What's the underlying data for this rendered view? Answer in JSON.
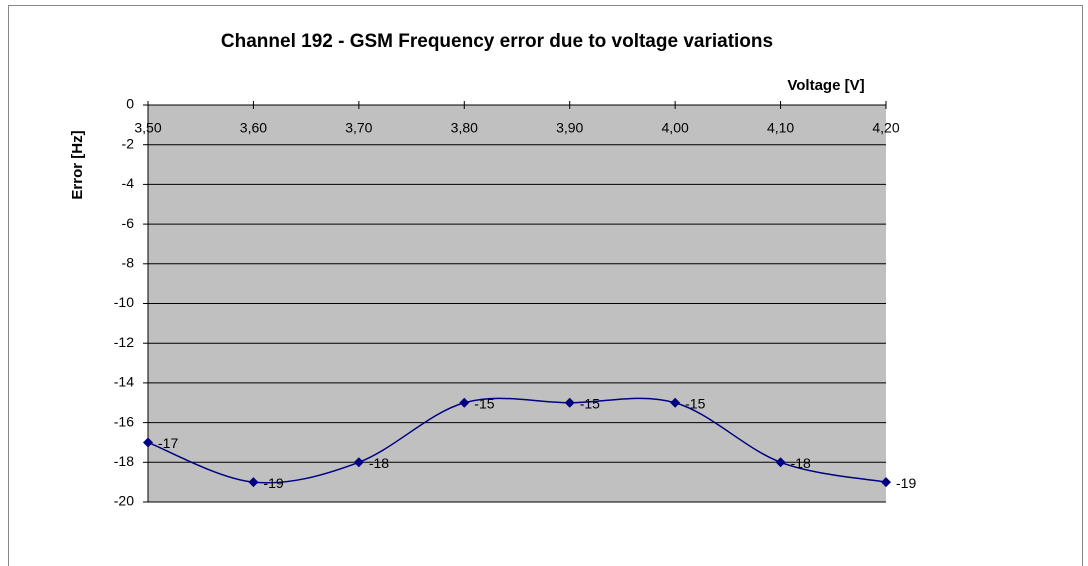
{
  "chart_data": {
    "type": "line",
    "title": "Channel 192 - GSM Frequency error due to voltage variations",
    "x_label": "Voltage [V]",
    "y_label": "Error [Hz]",
    "categories": [
      "3,50",
      "3,60",
      "3,70",
      "3,80",
      "3,90",
      "4,00",
      "4,10",
      "4,20"
    ],
    "series": [
      {
        "name": "Error",
        "color": "#000080",
        "values": [
          -17,
          -19,
          -18,
          -15,
          -15,
          -15,
          -18,
          -19
        ]
      }
    ],
    "ylim": [
      -20,
      0
    ],
    "yticks": [
      0,
      -2,
      -4,
      -6,
      -8,
      -10,
      -12,
      -14,
      -16,
      -18,
      -20
    ],
    "grid": true,
    "plot_background": "#c0c0c0",
    "smooth": true
  }
}
